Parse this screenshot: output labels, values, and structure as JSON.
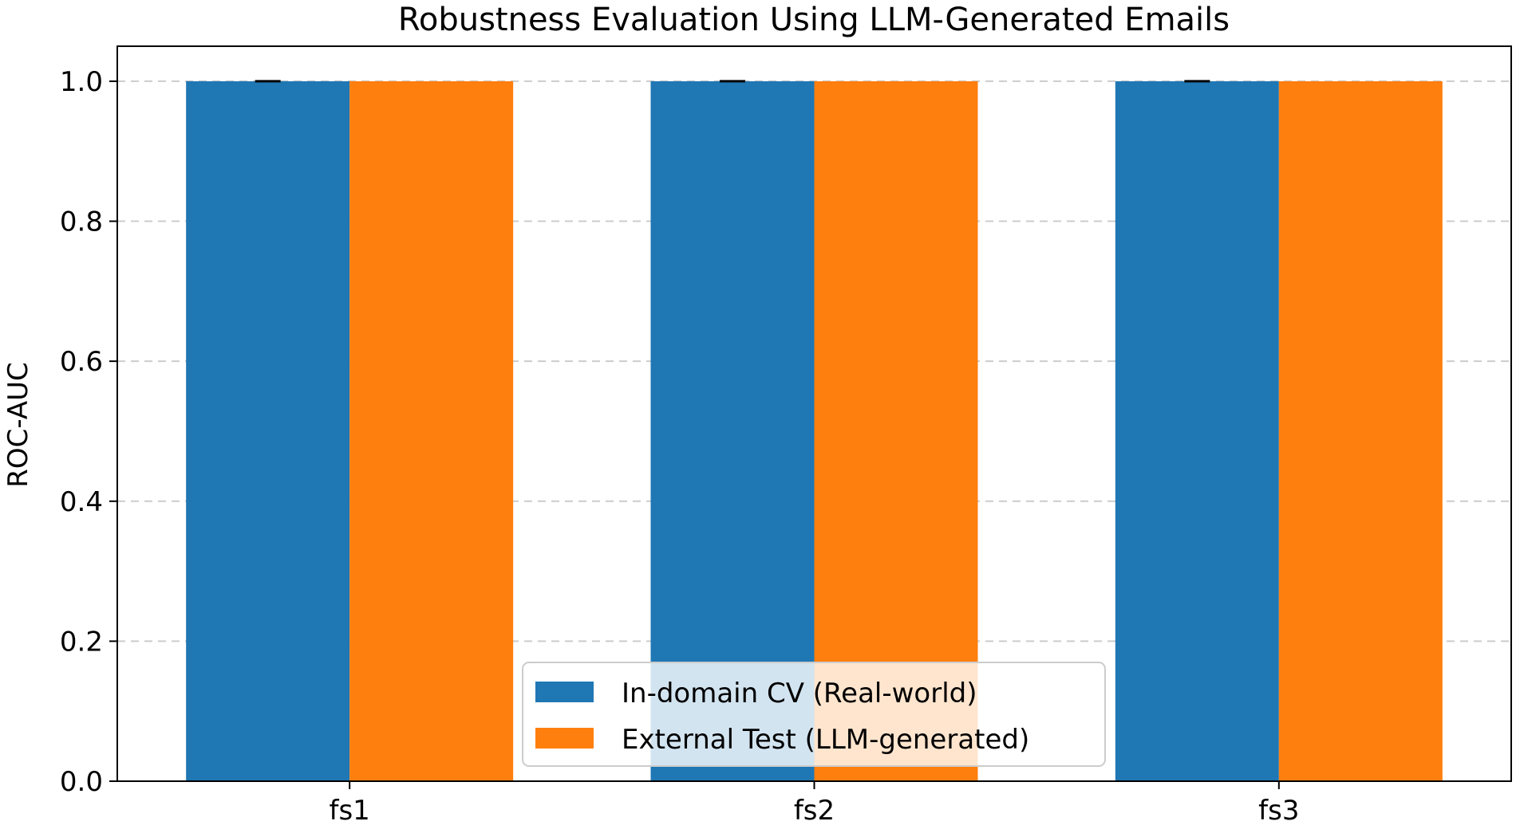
{
  "chart_data": {
    "type": "bar",
    "title": "Robustness Evaluation Using LLM-Generated Emails",
    "xlabel": "",
    "ylabel": "ROC-AUC",
    "categories": [
      "fs1",
      "fs2",
      "fs3"
    ],
    "series": [
      {
        "name": "In-domain CV (Real-world)",
        "values": [
          1.0,
          1.0,
          1.0
        ],
        "error": [
          0.0,
          0.0,
          0.0
        ],
        "color": "#1f77b4"
      },
      {
        "name": "External Test (LLM-generated)",
        "values": [
          1.0,
          1.0,
          1.0
        ],
        "color": "#ff7f0e"
      }
    ],
    "ylim": [
      0,
      1.05
    ],
    "yticks": [
      "0.0",
      "0.2",
      "0.4",
      "0.6",
      "0.8",
      "1.0"
    ],
    "grid": "y-dashed",
    "legend": "lower-center"
  }
}
